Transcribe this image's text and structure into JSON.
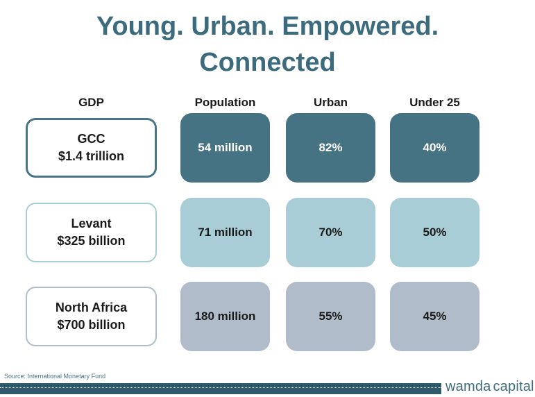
{
  "title": {
    "line1": "Young. Urban. Empowered.",
    "line2": "Connected"
  },
  "headers": {
    "gdp": "GDP",
    "population": "Population",
    "urban": "Urban",
    "under25": "Under 25"
  },
  "rows": [
    {
      "region": "GCC",
      "gdp": "$1.4 trillion",
      "population": "54 million",
      "urban": "82%",
      "under25": "40%"
    },
    {
      "region": "Levant",
      "gdp": "$325 billion",
      "population": "71 million",
      "urban": "70%",
      "under25": "50%"
    },
    {
      "region": "North Africa",
      "gdp": "$700 billion",
      "population": "180 million",
      "urban": "55%",
      "under25": "45%"
    }
  ],
  "source": "Source: International Monetary Fund",
  "brand": {
    "name": "wamda",
    "suffix": "capital"
  },
  "colors": {
    "title": "#3d6b7e",
    "row1_fill": "#467384",
    "row2_fill": "#a9cdd6",
    "row3_fill": "#b1bccb",
    "footer_bar": "#2e5a6c"
  }
}
